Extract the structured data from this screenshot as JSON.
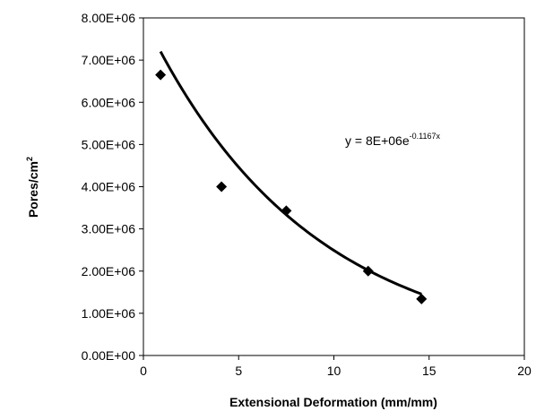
{
  "chart_data": {
    "type": "scatter",
    "xlabel": "Extensional Deformation (mm/mm)",
    "ylabel": "Pores/cm",
    "ylabel_superscript": "2",
    "xlim": [
      0,
      20
    ],
    "ylim": [
      0,
      8000000
    ],
    "x_ticks": [
      0,
      5,
      10,
      15,
      20
    ],
    "x_tick_labels": [
      "0",
      "5",
      "10",
      "15",
      "20"
    ],
    "y_ticks": [
      0,
      1000000,
      2000000,
      3000000,
      4000000,
      5000000,
      6000000,
      7000000,
      8000000
    ],
    "y_tick_labels": [
      "0.00E+00",
      "1.00E+06",
      "2.00E+06",
      "3.00E+06",
      "4.00E+06",
      "5.00E+06",
      "6.00E+06",
      "7.00E+06",
      "8.00E+06"
    ],
    "grid": false,
    "series": [
      {
        "marker": "diamond",
        "color": "#000000",
        "x": [
          0.9,
          4.1,
          7.5,
          11.8,
          14.6
        ],
        "y": [
          6650000,
          4000000,
          3430000,
          2000000,
          1340000
        ]
      }
    ],
    "trendline": {
      "type": "exponential",
      "a": 8000000,
      "b": -0.1167,
      "x_range": [
        0.9,
        14.6
      ],
      "color": "#000000",
      "equation_prefix": "y = 8E+06e",
      "equation_exponent": "-0.1167x"
    }
  }
}
